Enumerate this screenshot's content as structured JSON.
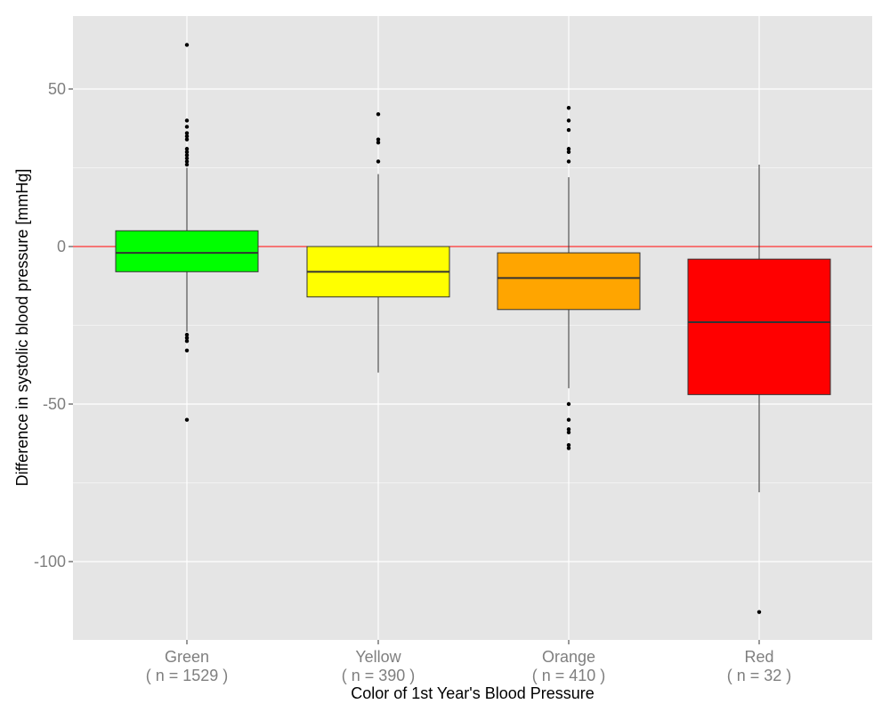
{
  "chart_data": {
    "type": "boxplot",
    "xlabel": "Color of 1st Year's Blood Pressure",
    "ylabel": "Difference in systolic blood pressure [mmHg]",
    "ylim": [
      -125,
      73
    ],
    "yticks": [
      50,
      0,
      -50,
      -100
    ],
    "reference_line": {
      "y": 0,
      "color": "#ff0000"
    },
    "grid": true,
    "categories": [
      {
        "name": "Green",
        "n_label": "( n = 1529 )",
        "color": "#00ff00",
        "q1": -8,
        "median": -2,
        "q3": 5,
        "whisker_low": -27,
        "whisker_high": 25,
        "outliers": [
          64,
          40,
          38,
          36,
          35,
          34,
          31,
          30,
          29,
          28,
          27,
          26,
          -28,
          -29,
          -30,
          -33,
          -55
        ]
      },
      {
        "name": "Yellow",
        "n_label": "( n = 390 )",
        "color": "#ffff00",
        "q1": -16,
        "median": -8,
        "q3": 0,
        "whisker_low": -40,
        "whisker_high": 23,
        "outliers": [
          42,
          34,
          33,
          27
        ]
      },
      {
        "name": "Orange",
        "n_label": "( n = 410 )",
        "color": "#ffa500",
        "q1": -20,
        "median": -10,
        "q3": -2,
        "whisker_low": -45,
        "whisker_high": 22,
        "outliers": [
          44,
          40,
          37,
          31,
          30,
          27,
          -50,
          -55,
          -58,
          -59,
          -63,
          -64
        ]
      },
      {
        "name": "Red",
        "n_label": "( n = 32 )",
        "color": "#ff0000",
        "q1": -47,
        "median": -24,
        "q3": -4,
        "whisker_low": -78,
        "whisker_high": 26,
        "outliers": [
          -116
        ]
      }
    ]
  }
}
